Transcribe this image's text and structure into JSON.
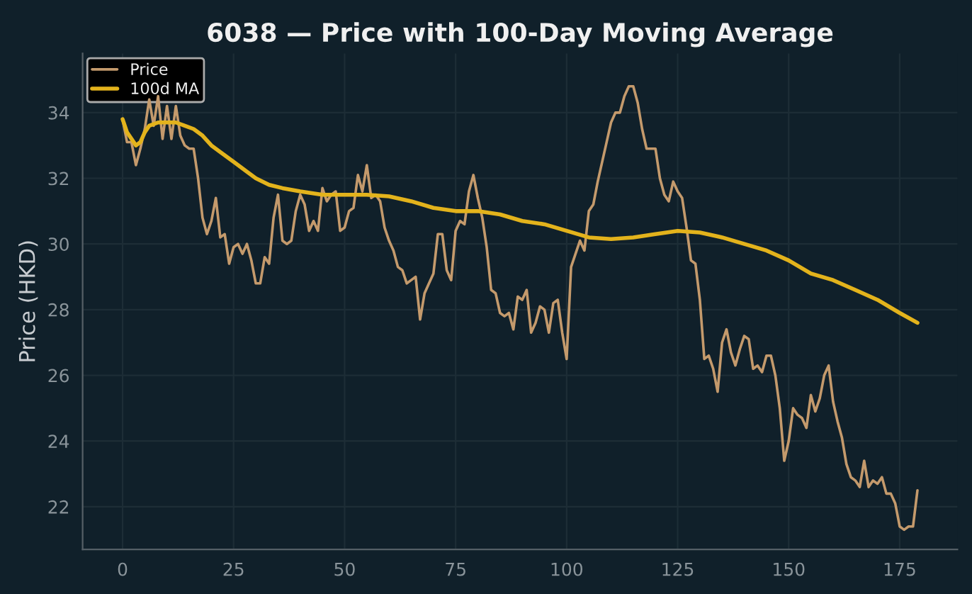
{
  "chart_data": {
    "type": "line",
    "title": "6038 — Price with 100-Day Moving Average",
    "ylabel": "Price (HKD)",
    "xlim": [
      -9,
      188
    ],
    "ylim": [
      20.7,
      35.8
    ],
    "xticks": [
      0,
      25,
      50,
      75,
      100,
      125,
      150,
      175
    ],
    "yticks": [
      22,
      24,
      26,
      28,
      30,
      32,
      34
    ],
    "grid": true,
    "legend": "top left",
    "line_style": "solid",
    "marker": "none",
    "series": [
      {
        "name": "Price",
        "color": "#c49a6c",
        "x": [
          0,
          1,
          2,
          3,
          4,
          5,
          6,
          7,
          8,
          9,
          10,
          11,
          12,
          13,
          14,
          15,
          16,
          17,
          18,
          19,
          20,
          21,
          22,
          23,
          24,
          25,
          26,
          27,
          28,
          29,
          30,
          31,
          32,
          33,
          34,
          35,
          36,
          37,
          38,
          39,
          40,
          41,
          42,
          43,
          44,
          45,
          46,
          47,
          48,
          49,
          50,
          51,
          52,
          53,
          54,
          55,
          56,
          57,
          58,
          59,
          60,
          61,
          62,
          63,
          64,
          65,
          66,
          67,
          68,
          69,
          70,
          71,
          72,
          73,
          74,
          75,
          76,
          77,
          78,
          79,
          80,
          81,
          82,
          83,
          84,
          85,
          86,
          87,
          88,
          89,
          90,
          91,
          92,
          93,
          94,
          95,
          96,
          97,
          98,
          99,
          100,
          101,
          102,
          103,
          104,
          105,
          106,
          107,
          108,
          109,
          110,
          111,
          112,
          113,
          114,
          115,
          116,
          117,
          118,
          119,
          120,
          121,
          122,
          123,
          124,
          125,
          126,
          127,
          128,
          129,
          130,
          131,
          132,
          133,
          134,
          135,
          136,
          137,
          138,
          139,
          140,
          141,
          142,
          143,
          144,
          145,
          146,
          147,
          148,
          149,
          150,
          151,
          152,
          153,
          154,
          155,
          156,
          157,
          158,
          159,
          160,
          161,
          162,
          163,
          164,
          165,
          166,
          167,
          168,
          169,
          170,
          171,
          172,
          173,
          174,
          175,
          176,
          177,
          178,
          179
        ],
        "values": [
          33.8,
          33.1,
          33.1,
          32.4,
          32.9,
          33.5,
          34.4,
          33.6,
          34.5,
          33.2,
          34.2,
          33.2,
          34.2,
          33.3,
          33.0,
          32.9,
          32.9,
          32.0,
          30.8,
          30.3,
          30.7,
          31.4,
          30.2,
          30.3,
          29.4,
          29.9,
          30.0,
          29.7,
          30.0,
          29.5,
          28.8,
          28.8,
          29.6,
          29.4,
          30.8,
          31.5,
          30.1,
          30.0,
          30.1,
          31.0,
          31.5,
          31.2,
          30.4,
          30.7,
          30.4,
          31.7,
          31.3,
          31.5,
          31.6,
          30.4,
          30.5,
          31.0,
          31.1,
          32.1,
          31.6,
          32.4,
          31.4,
          31.5,
          31.3,
          30.5,
          30.1,
          29.8,
          29.3,
          29.2,
          28.8,
          28.9,
          29.0,
          27.7,
          28.5,
          28.8,
          29.1,
          30.3,
          30.3,
          29.2,
          28.9,
          30.4,
          30.7,
          30.6,
          31.6,
          32.1,
          31.4,
          30.8,
          29.9,
          28.6,
          28.5,
          27.9,
          27.8,
          27.9,
          27.4,
          28.4,
          28.3,
          28.6,
          27.3,
          27.6,
          28.1,
          28.0,
          27.3,
          28.2,
          28.3,
          27.3,
          26.5,
          29.3,
          29.7,
          30.1,
          29.8,
          31.0,
          31.2,
          31.9,
          32.5,
          33.1,
          33.7,
          34.0,
          34.0,
          34.5,
          34.8,
          34.8,
          34.3,
          33.5,
          32.9,
          32.9,
          32.9,
          32.0,
          31.5,
          31.3,
          31.9,
          31.6,
          31.4,
          30.5,
          29.5,
          29.4,
          28.3,
          26.5,
          26.6,
          26.2,
          25.5,
          27.0,
          27.4,
          26.7,
          26.3,
          26.8,
          27.2,
          27.1,
          26.2,
          26.3,
          26.1,
          26.6,
          26.6,
          26.0,
          25.0,
          23.4,
          24.0,
          25.0,
          24.8,
          24.7,
          24.4,
          25.4,
          24.9,
          25.3,
          26.0,
          26.3,
          25.2,
          24.6,
          24.1,
          23.3,
          22.9,
          22.8,
          22.6,
          23.4,
          22.6,
          22.8,
          22.7,
          22.9,
          22.4,
          22.4,
          22.1,
          21.4,
          21.3,
          21.4,
          21.4,
          22.5
        ]
      },
      {
        "name": "100d MA",
        "color": "#e3b31c",
        "x": [
          0,
          1,
          2,
          3,
          4,
          5,
          6,
          8,
          10,
          12,
          14,
          16,
          18,
          20,
          22,
          25,
          28,
          30,
          33,
          36,
          40,
          45,
          50,
          55,
          60,
          65,
          70,
          75,
          80,
          85,
          90,
          95,
          100,
          105,
          110,
          115,
          120,
          125,
          130,
          135,
          140,
          145,
          150,
          155,
          160,
          165,
          170,
          175,
          179
        ],
        "values": [
          33.8,
          33.4,
          33.2,
          33.0,
          33.1,
          33.4,
          33.6,
          33.7,
          33.7,
          33.7,
          33.6,
          33.5,
          33.3,
          33.0,
          32.8,
          32.5,
          32.2,
          32.0,
          31.8,
          31.7,
          31.6,
          31.5,
          31.5,
          31.5,
          31.45,
          31.3,
          31.1,
          31.0,
          31.0,
          30.9,
          30.7,
          30.6,
          30.4,
          30.2,
          30.15,
          30.2,
          30.3,
          30.4,
          30.35,
          30.2,
          30.0,
          29.8,
          29.5,
          29.1,
          28.9,
          28.6,
          28.3,
          27.9,
          27.6
        ]
      }
    ]
  }
}
